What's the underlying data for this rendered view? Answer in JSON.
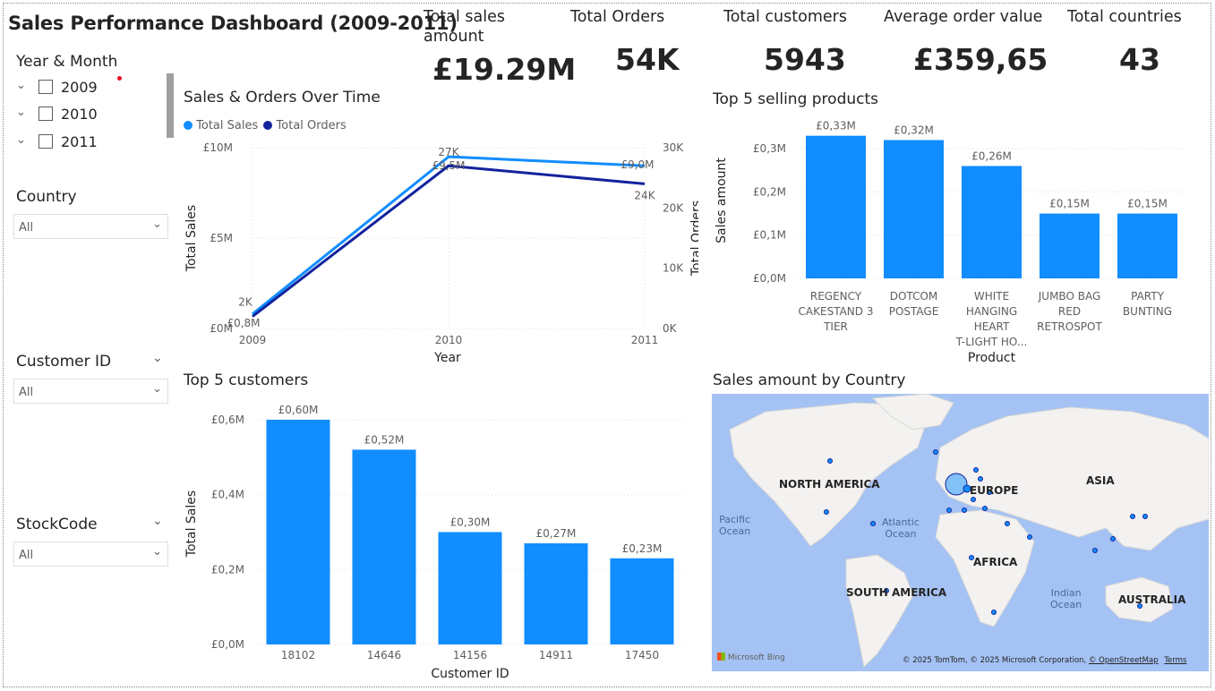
{
  "header": {
    "title": "Sales Performance Dashboard (2009-2011)"
  },
  "kpis": {
    "total_sales": {
      "label": "Total sales amount",
      "value": "£19.29M"
    },
    "total_orders": {
      "label": "Total Orders",
      "value": "54K"
    },
    "total_customers": {
      "label": "Total customers",
      "value": "5943"
    },
    "avg_order": {
      "label": "Average order value",
      "value": "£359,65"
    },
    "total_countries": {
      "label": "Total countries",
      "value": "43"
    }
  },
  "slicers": {
    "year_month": {
      "title": "Year & Month",
      "items": [
        "2009",
        "2010",
        "2011"
      ]
    },
    "country": {
      "title": "Country",
      "value": "All"
    },
    "customer_id": {
      "title": "Customer ID",
      "value": "All"
    },
    "stock_code": {
      "title": "StockCode",
      "value": "All"
    }
  },
  "colors": {
    "light_blue": "#118DFF",
    "dark_blue": "#12239E",
    "grid": "#e1dfdd"
  },
  "charts": {
    "sales_orders": {
      "title": "Sales & Orders Over Time",
      "legend": [
        "Total Sales",
        "Total Orders"
      ],
      "y_left_ticks": [
        "£0M",
        "£5M",
        "£10M"
      ],
      "y_right_ticks": [
        "0K",
        "10K",
        "20K",
        "30K"
      ],
      "x_ticks": [
        "2009",
        "2010",
        "2011"
      ],
      "ylabel_left": "Total Sales",
      "ylabel_right": "Total Orders",
      "xlabel": "Year",
      "sales_labels": [
        "£0,8M",
        "£9,5M",
        "£9,0M"
      ],
      "orders_labels": [
        "2K",
        "27K",
        "24K"
      ]
    },
    "top_products": {
      "title": "Top 5 selling products",
      "y_ticks": [
        "£0,0M",
        "£0,1M",
        "£0,2M",
        "£0,3M"
      ],
      "ylabel": "Sales amount",
      "xlabel": "Product",
      "value_labels": [
        "£0,33M",
        "£0,32M",
        "£0,26M",
        "£0,15M",
        "£0,15M"
      ],
      "category_lines": [
        [
          "REGENCY",
          "CAKESTAND 3",
          "TIER"
        ],
        [
          "DOTCOM",
          "POSTAGE"
        ],
        [
          "WHITE",
          "HANGING",
          "HEART",
          "T-LIGHT HO..."
        ],
        [
          "JUMBO BAG",
          "RED",
          "RETROSPOT"
        ],
        [
          "PARTY",
          "BUNTING"
        ]
      ]
    },
    "top_customers": {
      "title": "Top 5 customers",
      "y_ticks": [
        "£0,0M",
        "£0,2M",
        "£0,4M",
        "£0,6M"
      ],
      "ylabel": "Total Sales",
      "xlabel": "Customer ID",
      "value_labels": [
        "£0,60M",
        "£0,52M",
        "£0,30M",
        "£0,27M",
        "£0,23M"
      ]
    },
    "map": {
      "title": "Sales amount by Country",
      "labels": {
        "north_america": "NORTH AMERICA",
        "europe": "EUROPE",
        "asia": "ASIA",
        "africa": "AFRICA",
        "south_america": "SOUTH AMERICA",
        "australia": "AUSTRALIA",
        "pacific_1": "Pacific",
        "pacific_2": "Ocean",
        "atlantic_1": "Atlantic",
        "atlantic_2": "Ocean",
        "indian_1": "Indian",
        "indian_2": "Ocean"
      },
      "brand": "Microsoft Bing",
      "copyright": "© 2025 TomTom, © 2025 Microsoft Corporation,",
      "osm": "© OpenStreetMap",
      "terms": "Terms"
    }
  },
  "chart_data": [
    {
      "type": "line",
      "title": "Sales & Orders Over Time",
      "x": [
        2009,
        2010,
        2011
      ],
      "xlabel": "Year",
      "series": [
        {
          "name": "Total Sales",
          "values": [
            0.8,
            9.5,
            9.0
          ],
          "axis": "left",
          "ylim": [
            0,
            10
          ]
        },
        {
          "name": "Total Orders",
          "values": [
            2,
            27,
            24
          ],
          "axis": "right",
          "ylim": [
            0,
            30
          ]
        }
      ],
      "ylabel": "Total Sales",
      "ylabel_right": "Total Orders",
      "legend": "top-left"
    },
    {
      "type": "bar",
      "title": "Top 5 selling products",
      "categories": [
        "REGENCY CAKESTAND 3 TIER",
        "DOTCOM POSTAGE",
        "WHITE HANGING HEART T-LIGHT HO...",
        "JUMBO BAG RED RETROSPOT",
        "PARTY BUNTING"
      ],
      "values": [
        0.33,
        0.32,
        0.26,
        0.15,
        0.15
      ],
      "xlabel": "Product",
      "ylabel": "Sales amount",
      "ylim": [
        0,
        0.35
      ]
    },
    {
      "type": "bar",
      "title": "Top 5 customers",
      "categories": [
        "18102",
        "14646",
        "14156",
        "14911",
        "17450"
      ],
      "values": [
        0.6,
        0.52,
        0.3,
        0.27,
        0.23
      ],
      "xlabel": "Customer ID",
      "ylabel": "Total Sales",
      "ylim": [
        0,
        0.65
      ]
    }
  ]
}
